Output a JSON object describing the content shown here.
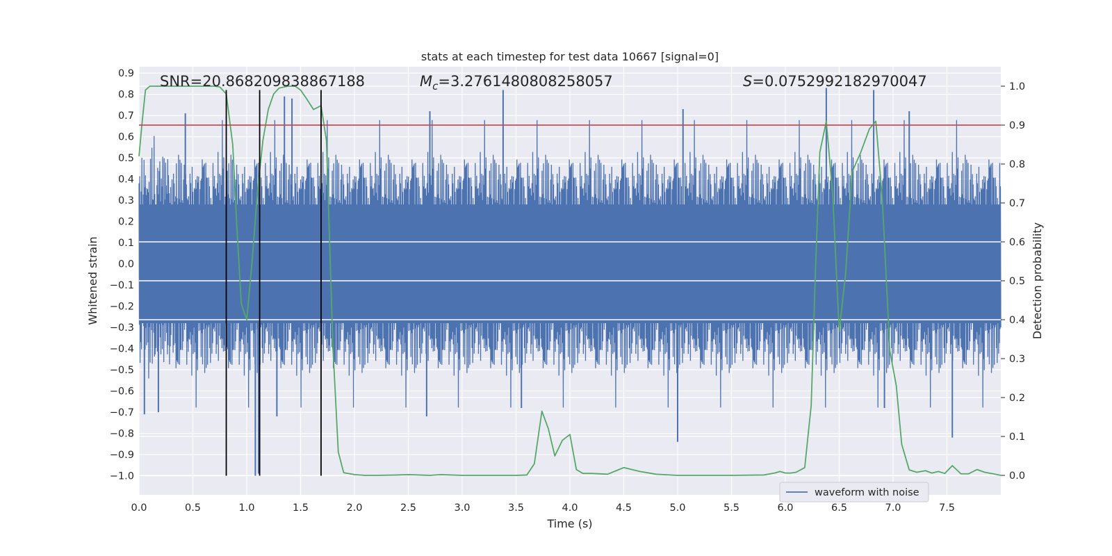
{
  "chart_data": {
    "type": "line",
    "title": "stats at each timestep for test data 10667 [signal=0]",
    "xlabel": "Time (s)",
    "ylabel_left": "Whitened strain",
    "ylabel_right": "Detection probability",
    "xlim": [
      0.0,
      8.0
    ],
    "ylim_left": [
      -1.09,
      0.93
    ],
    "ylim_right": [
      -0.05,
      1.05
    ],
    "x_ticks": [
      "0.0",
      "0.5",
      "1.0",
      "1.5",
      "2.0",
      "2.5",
      "3.0",
      "3.5",
      "4.0",
      "4.5",
      "5.0",
      "5.5",
      "6.0",
      "6.5",
      "7.0",
      "7.5"
    ],
    "y_left_ticks": [
      "0.9",
      "0.8",
      "0.7",
      "0.6",
      "0.5",
      "0.4",
      "0.3",
      "0.2",
      "0.1",
      "0.0",
      "−0.1",
      "−0.2",
      "−0.3",
      "−0.4",
      "−0.5",
      "−0.6",
      "−0.7",
      "−0.8",
      "−0.9",
      "−1.0"
    ],
    "y_right_ticks": [
      "1.0",
      "0.9",
      "0.8",
      "0.7",
      "0.6",
      "0.5",
      "0.4",
      "0.3",
      "0.2",
      "0.1",
      "0.0"
    ],
    "grid": true,
    "legend_position": "lower right",
    "annotations": {
      "snr": "SNR=20.868209838867188",
      "mc_symbol": "M",
      "mc_sub": "c",
      "mc_value": "=3.2761480808258057",
      "s_symbol": "S",
      "s_value": "=0.0752992182970047"
    },
    "threshold": 0.9,
    "vertical_lines_x": [
      0.81,
      1.12,
      1.69
    ],
    "waveform": {
      "name": "waveform with noise",
      "color": "#4c72b0",
      "envelope_core": 0.28,
      "envelope_typical": 0.55,
      "peaks": [
        {
          "x": 3.38,
          "y": 0.82
        },
        {
          "x": 6.38,
          "y": 0.83
        },
        {
          "x": 6.82,
          "y": 0.82
        },
        {
          "x": 1.35,
          "y": 0.79
        },
        {
          "x": 1.42,
          "y": 0.78
        },
        {
          "x": 2.7,
          "y": 0.72
        },
        {
          "x": 0.43,
          "y": 0.71
        },
        {
          "x": 7.15,
          "y": 0.72
        },
        {
          "x": 5.05,
          "y": 0.73
        },
        {
          "x": 1.08,
          "y": -1.0
        },
        {
          "x": 1.11,
          "y": -0.99
        },
        {
          "x": 5.0,
          "y": -0.84
        },
        {
          "x": 7.55,
          "y": -0.82
        },
        {
          "x": 0.05,
          "y": -0.71
        },
        {
          "x": 0.18,
          "y": -0.7
        },
        {
          "x": 2.67,
          "y": -0.72
        },
        {
          "x": 3.55,
          "y": -0.68
        },
        {
          "x": 1.28,
          "y": -0.72
        },
        {
          "x": 6.92,
          "y": -0.68
        }
      ]
    },
    "series": [
      {
        "name": "detection probability",
        "color": "#55a868",
        "axis": "right",
        "x": [
          0.0,
          0.03,
          0.06,
          0.1,
          0.15,
          0.2,
          0.3,
          0.4,
          0.5,
          0.6,
          0.7,
          0.75,
          0.81,
          0.87,
          0.91,
          0.95,
          1.0,
          1.05,
          1.1,
          1.15,
          1.2,
          1.25,
          1.3,
          1.38,
          1.45,
          1.5,
          1.55,
          1.62,
          1.69,
          1.74,
          1.8,
          1.85,
          1.9,
          2.0,
          2.1,
          2.2,
          2.4,
          2.5,
          2.6,
          2.7,
          2.8,
          3.0,
          3.2,
          3.4,
          3.5,
          3.6,
          3.67,
          3.74,
          3.8,
          3.86,
          3.93,
          4.0,
          4.06,
          4.12,
          4.2,
          4.35,
          4.5,
          4.65,
          4.8,
          5.0,
          5.2,
          5.5,
          5.8,
          5.9,
          5.95,
          6.0,
          6.05,
          6.1,
          6.18,
          6.24,
          6.28,
          6.32,
          6.38,
          6.44,
          6.5,
          6.56,
          6.62,
          6.7,
          6.78,
          6.84,
          6.9,
          6.97,
          7.03,
          7.08,
          7.15,
          7.22,
          7.3,
          7.36,
          7.42,
          7.48,
          7.55,
          7.63,
          7.7,
          7.78,
          7.85,
          7.93,
          8.0
        ],
        "y": [
          0.82,
          0.91,
          0.99,
          1.0,
          1.0,
          1.0,
          1.0,
          1.0,
          1.0,
          1.0,
          1.0,
          0.998,
          0.98,
          0.85,
          0.63,
          0.44,
          0.4,
          0.55,
          0.73,
          0.86,
          0.94,
          0.98,
          0.995,
          1.0,
          1.0,
          0.99,
          0.97,
          0.94,
          0.95,
          0.86,
          0.33,
          0.06,
          0.007,
          0.002,
          0.0,
          0.0,
          0.001,
          0.002,
          0.001,
          0.0,
          0.002,
          0.0,
          0.0,
          0.0,
          0.0,
          0.001,
          0.03,
          0.165,
          0.12,
          0.05,
          0.09,
          0.105,
          0.015,
          0.005,
          0.005,
          0.003,
          0.02,
          0.01,
          0.003,
          0.0,
          0.0,
          0.0,
          0.001,
          0.006,
          0.01,
          0.006,
          0.006,
          0.008,
          0.02,
          0.18,
          0.53,
          0.83,
          0.91,
          0.72,
          0.37,
          0.52,
          0.78,
          0.83,
          0.89,
          0.91,
          0.71,
          0.32,
          0.23,
          0.08,
          0.014,
          0.008,
          0.012,
          0.006,
          0.01,
          0.005,
          0.025,
          0.004,
          0.004,
          0.015,
          0.008,
          0.004,
          0.0
        ]
      },
      {
        "name": "threshold",
        "color": "#c44e52",
        "axis": "right",
        "x": [
          0.0,
          8.0
        ],
        "y": [
          0.9,
          0.9
        ]
      }
    ]
  },
  "colors": {
    "axes_bg": "#eaeaf2",
    "grid": "#ffffff",
    "waveform": "#4c72b0",
    "probability": "#55a868",
    "threshold": "#c44e52",
    "event_line": "#000000",
    "text": "#262626"
  }
}
